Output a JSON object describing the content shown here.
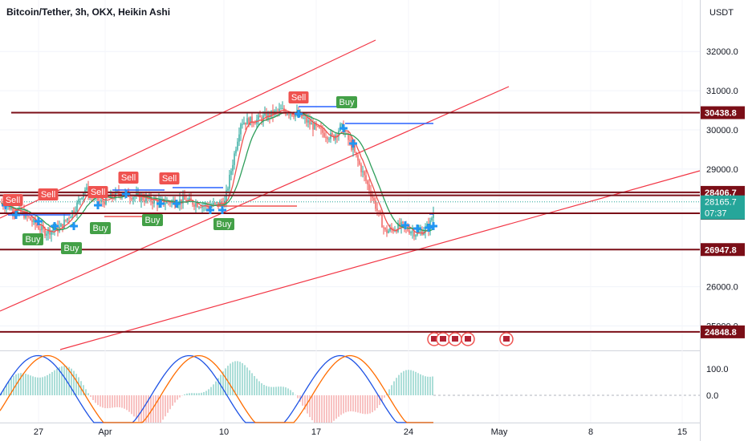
{
  "header": {
    "title": "Bitcoin/Tether, 3h, OKX, Heikin Ashi",
    "currency": "USDT"
  },
  "colors": {
    "up": "#26a69a",
    "down": "#ef5350",
    "level_line": "#7b0e17",
    "channel": "#f23645",
    "ma": "#ef5350",
    "ma2": "#2e9e5a",
    "blue": "#2962ff",
    "axis_text": "#131722",
    "price_tag": "#26a69a"
  },
  "chart_data": [
    {
      "type": "line",
      "title": "",
      "y_axis": {
        "ticks": [
          25000.0,
          26000.0,
          27000.0,
          28000.0,
          29000.0,
          30000.0,
          31000.0,
          32000.0
        ],
        "tick_labels": [
          "25000.0",
          "26000.0",
          "27000.0",
          "28000.0",
          "29000.0",
          "30000.0",
          "31000.0",
          "32000.0"
        ],
        "ylim": [
          24500,
          33000
        ]
      },
      "x_axis": {
        "labels": [
          "27",
          "Apr",
          "10",
          "17",
          "24",
          "May",
          "8",
          "15"
        ]
      },
      "horizontal_levels": [
        {
          "value": 30438.8,
          "label": "30438.8"
        },
        {
          "value": 28406.7,
          "label": "28406.7"
        },
        {
          "value": 28330.4,
          "label": "28330.4"
        },
        {
          "value": 27873.0,
          "label": "27873.0"
        },
        {
          "value": 26947.8,
          "label": "26947.8"
        },
        {
          "value": 24848.8,
          "label": "24848.8"
        }
      ],
      "current_price": {
        "value": 28165.7,
        "label": "28165.7",
        "countdown": "07:37"
      },
      "signals": [
        {
          "label": "Sell",
          "kind": "sell"
        },
        {
          "label": "Sell",
          "kind": "sell"
        },
        {
          "label": "Sell",
          "kind": "sell"
        },
        {
          "label": "Sell",
          "kind": "sell"
        },
        {
          "label": "Sell",
          "kind": "sell"
        },
        {
          "label": "Sell",
          "kind": "sell"
        },
        {
          "label": "Buy",
          "kind": "buy"
        },
        {
          "label": "Buy",
          "kind": "buy"
        },
        {
          "label": "Buy",
          "kind": "buy"
        },
        {
          "label": "Buy",
          "kind": "buy"
        },
        {
          "label": "Buy",
          "kind": "buy"
        },
        {
          "label": "Buy",
          "kind": "buy"
        }
      ]
    },
    {
      "type": "line",
      "title": "",
      "y_axis": {
        "ticks": [
          100.0,
          0.0
        ],
        "tick_labels": [
          "100.0",
          "0.0"
        ]
      }
    }
  ]
}
